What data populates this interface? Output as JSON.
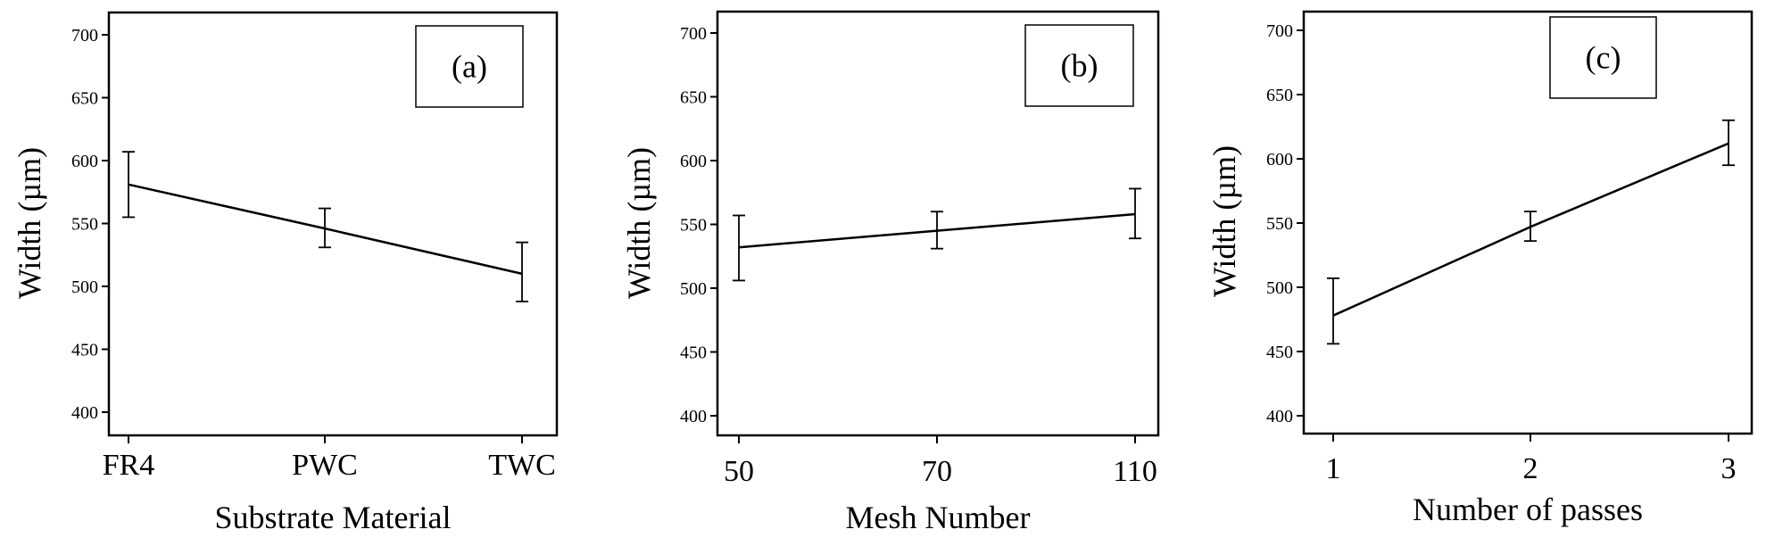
{
  "chart_data": [
    {
      "type": "line",
      "panel_label": "(a)",
      "categories": [
        "FR4",
        "PWC",
        "TWC"
      ],
      "values": [
        581,
        546,
        510
      ],
      "error_low": [
        555,
        531,
        488
      ],
      "error_high": [
        607,
        562,
        535
      ],
      "xlabel": "Substrate Material",
      "ylabel": "Width (µm)",
      "ylim": [
        385,
        715
      ],
      "yticks": [
        400,
        450,
        500,
        550,
        600,
        650,
        700
      ],
      "ytick_labels": [
        "400",
        "450",
        "500",
        "550",
        "600",
        "650",
        "700"
      ],
      "grid": false
    },
    {
      "type": "line",
      "panel_label": "(b)",
      "categories": [
        "50",
        "70",
        "110"
      ],
      "values": [
        532,
        545,
        558
      ],
      "error_low": [
        506,
        531,
        539
      ],
      "error_high": [
        557,
        560,
        578
      ],
      "xlabel": "Mesh Number",
      "ylabel": "Width (µm)",
      "ylim": [
        385,
        715
      ],
      "yticks": [
        400,
        450,
        500,
        550,
        600,
        650,
        700
      ],
      "ytick_labels": [
        "400",
        "450",
        "500",
        "550",
        "600",
        "650",
        "700"
      ],
      "grid": false
    },
    {
      "type": "line",
      "panel_label": "(c)",
      "categories": [
        "1",
        "2",
        "3"
      ],
      "values": [
        478,
        547,
        612
      ],
      "error_low": [
        456,
        536,
        595
      ],
      "error_high": [
        507,
        559,
        630
      ],
      "xlabel": "Number of passes",
      "ylabel": "Width (µm)",
      "ylim": [
        385,
        715
      ],
      "yticks": [
        400,
        450,
        500,
        550,
        600,
        650,
        700
      ],
      "ytick_labels": [
        "400",
        "450",
        "500",
        "550",
        "600",
        "650",
        "700"
      ],
      "grid": false
    }
  ]
}
